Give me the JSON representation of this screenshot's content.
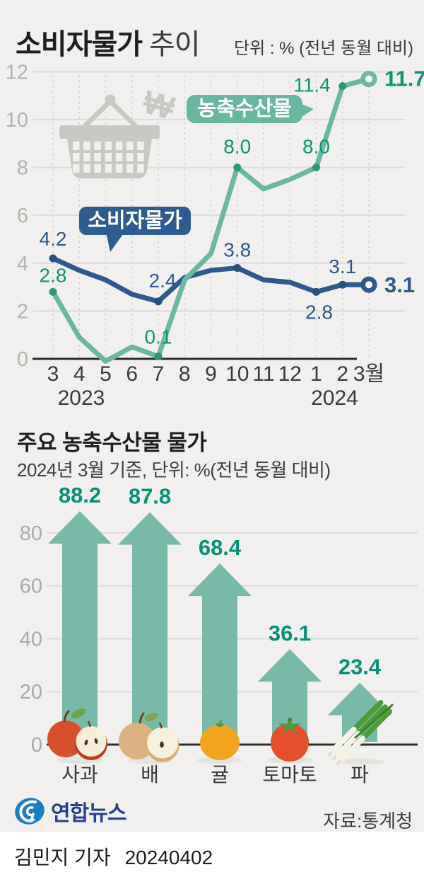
{
  "header": {
    "title_bold": "소비자물가",
    "title_light": "추이",
    "unit_note": "단위 : % (전년 동월 대비)"
  },
  "bar_section": {
    "title": "주요 농축수산물 물가",
    "subtitle": "2024년 3월 기준, 단위: %(전년 동월 대비)"
  },
  "footer": {
    "brand": "연합뉴스",
    "source": "자료:통계청",
    "byline": "김민지 기자",
    "date": "20240402"
  },
  "colors": {
    "background": "#f1f0ee",
    "cpi_blue": "#30588c",
    "agrifood_teal": "#6cb7a0",
    "teal_label_green": "#0f9376",
    "arrow_teal": "#79b9a7",
    "basket_gray": "#c9c8c5",
    "logo_blue": "#1b7fc4"
  },
  "chart_data": [
    {
      "type": "line",
      "title": "소비자물가 추이",
      "unit": "% (전년 동월 대비)",
      "x_labels": [
        "3",
        "4",
        "5",
        "6",
        "7",
        "8",
        "9",
        "10",
        "11",
        "12",
        "1",
        "2",
        "3월"
      ],
      "year_labels": [
        {
          "index": 0,
          "label": "2023"
        },
        {
          "index": 10,
          "label": "2024"
        }
      ],
      "ylim": [
        0,
        12
      ],
      "yticks": [
        0,
        2,
        4,
        6,
        8,
        10,
        12
      ],
      "grid": true,
      "legend_position": "on-chart-pills",
      "series": [
        {
          "name": "소비자물가",
          "color": "#30588c",
          "dot_color": "#27507f",
          "label_color": "#30588c",
          "values": [
            4.2,
            3.7,
            3.3,
            2.7,
            2.4,
            3.4,
            3.7,
            3.8,
            3.3,
            3.2,
            2.8,
            3.1,
            3.1
          ],
          "point_labels": [
            {
              "index": 0,
              "text": "4.2"
            },
            {
              "index": 4,
              "text": "2.4"
            },
            {
              "index": 7,
              "text": "3.8"
            },
            {
              "index": 10,
              "text": "2.8"
            },
            {
              "index": 11,
              "text": "3.1"
            },
            {
              "index": 12,
              "text": "3.1"
            }
          ]
        },
        {
          "name": "농축수산물",
          "color": "#6cb7a0",
          "dot_color": "#2f9678",
          "label_color": "#0f9376",
          "values": [
            2.8,
            0.9,
            -0.1,
            0.5,
            0.1,
            3.3,
            4.4,
            8.0,
            7.1,
            7.5,
            8.0,
            11.4,
            11.7
          ],
          "point_labels": [
            {
              "index": 0,
              "text": "2.8"
            },
            {
              "index": 4,
              "text": "0.1"
            },
            {
              "index": 7,
              "text": "8.0"
            },
            {
              "index": 10,
              "text": "8.0"
            },
            {
              "index": 11,
              "text": "11.4"
            },
            {
              "index": 12,
              "text": "11.7"
            }
          ]
        }
      ]
    },
    {
      "type": "bar",
      "title": "주요 농축수산물 물가",
      "subtitle": "2024년 3월 기준, 단위: %(전년 동월 대비)",
      "categories": [
        "사과",
        "배",
        "귤",
        "토마토",
        "파"
      ],
      "icons": [
        "apple-icon",
        "pear-icon",
        "tangerine-icon",
        "tomato-icon",
        "green-onion-icon"
      ],
      "values": [
        88.2,
        87.8,
        68.4,
        36.1,
        23.4
      ],
      "yticks": [
        0,
        20,
        40,
        60,
        80
      ],
      "ylim": [
        0,
        95
      ],
      "bar_color": "#79b9a7",
      "label_color": "#0a9077",
      "grid": true
    }
  ]
}
